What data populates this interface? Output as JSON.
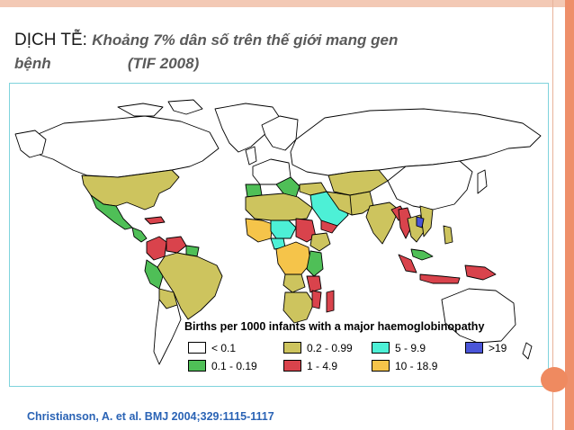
{
  "slide": {
    "title_heading": "DỊCH TỄ:",
    "title_sub": "Khoảng 7% dân số trên thế giới mang gen",
    "title_line2_word": "bệnh",
    "title_line2_source": "(TIF 2008)",
    "citation": "Christianson, A. et al. BMJ 2004;329:1115-1117"
  },
  "colors": {
    "frame_top": "#f3c9b5",
    "frame_right": "#ee8f6a",
    "slide_dot": "#ef8a60",
    "map_border": "#7fd3dc",
    "land_outline": "#000000"
  },
  "map": {
    "legend_title": "Births per 1000 infants with a major haemoglobinopathy",
    "legend": [
      {
        "label": "< 0.1",
        "color": "#ffffff"
      },
      {
        "label": "0.2 - 0.99",
        "color": "#cdc45e"
      },
      {
        "label": "5 - 9.9",
        "color": "#4df0d6"
      },
      {
        "label": ">19",
        "color": "#4a55d8"
      },
      {
        "label": "0.1 - 0.19",
        "color": "#4fbf57"
      },
      {
        "label": "1 - 4.9",
        "color": "#d9434c"
      },
      {
        "label": "10 - 18.9",
        "color": "#f5c44a"
      }
    ]
  }
}
